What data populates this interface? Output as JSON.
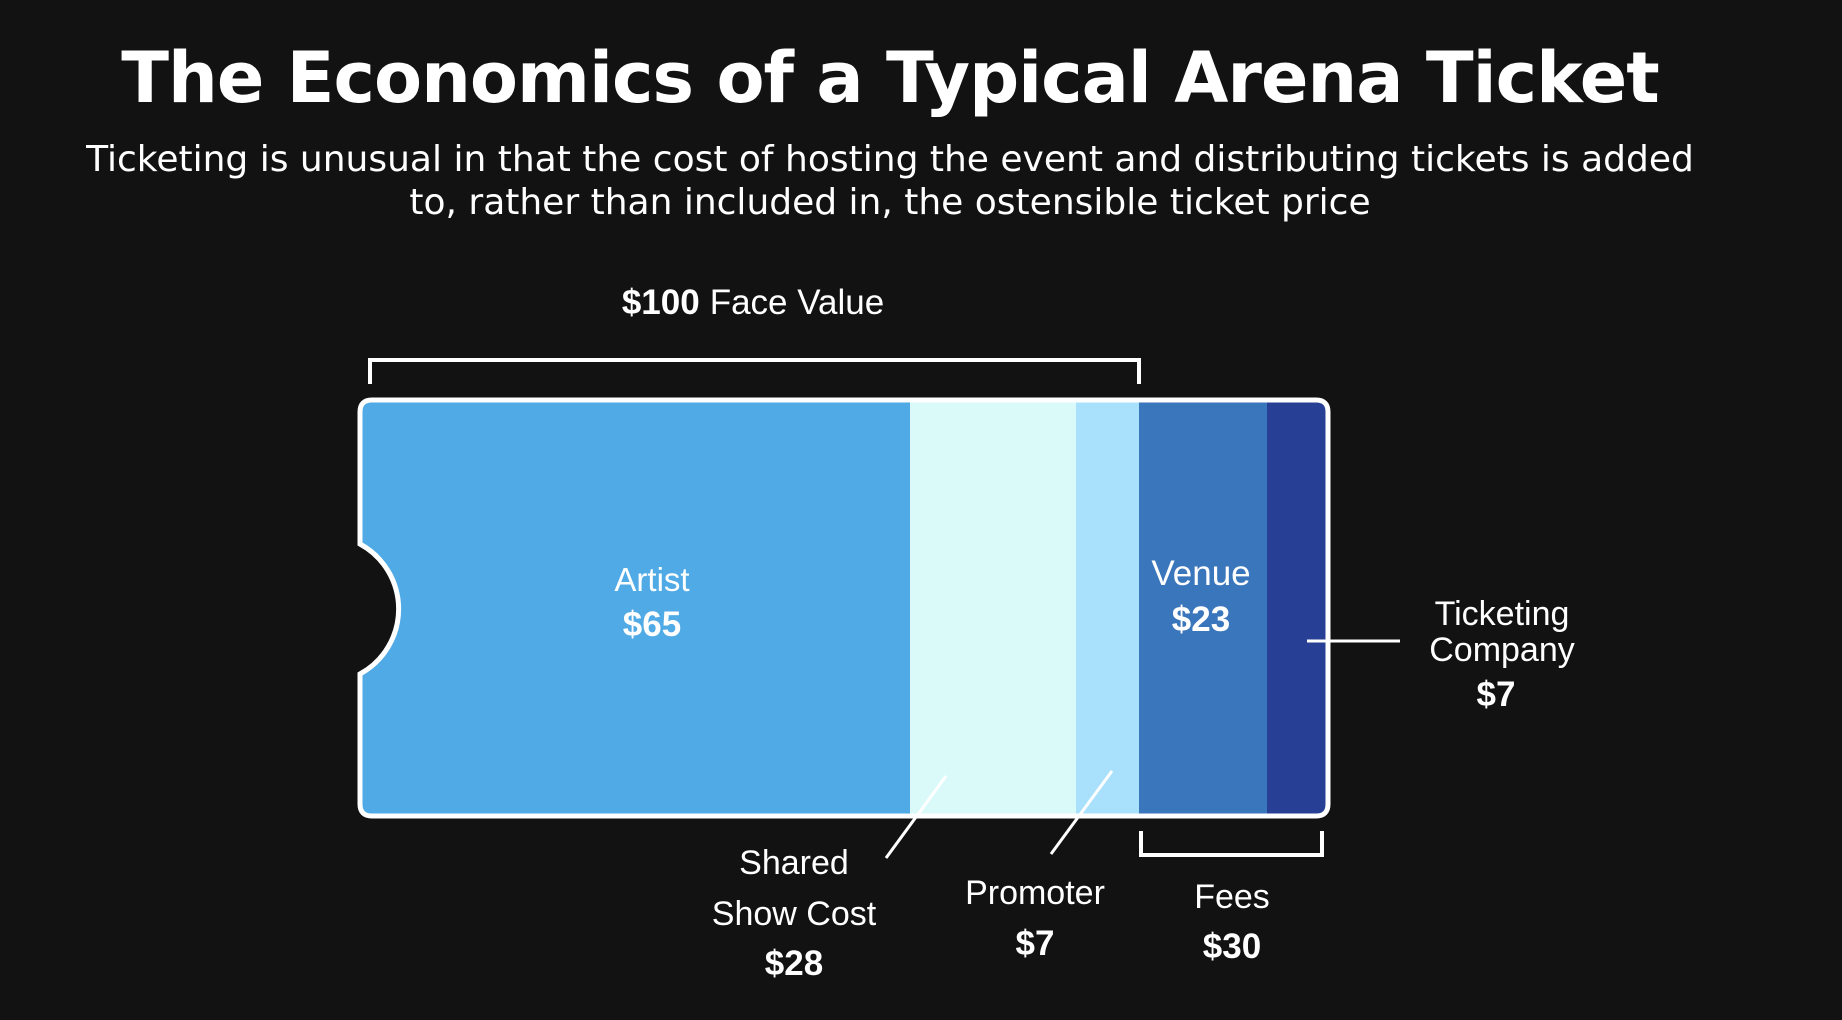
{
  "title": "The Economics of a Typical Arena Ticket",
  "subtitle": "Ticketing is unusual in that the cost of hosting the event and distributing tickets is added to, rather than included in, the ostensible ticket price",
  "face_value": {
    "amount": "$100",
    "label": "Face Value"
  },
  "segments": [
    {
      "name": "Artist",
      "amount": "$65",
      "color": "#4faae6"
    },
    {
      "name": "Shared Show Cost",
      "name_line1": "Shared",
      "name_line2": "Show Cost",
      "amount": "$28",
      "color": "#dafafa"
    },
    {
      "name": "Promoter",
      "amount": "$7",
      "color": "#a9e0fb"
    },
    {
      "name": "Venue",
      "amount": "$23",
      "color": "#3a76bb"
    },
    {
      "name": "Ticketing Company",
      "name_line1": "Ticketing",
      "name_line2": "Company",
      "amount": "$7",
      "color": "#283f96"
    }
  ],
  "fees": {
    "label": "Fees",
    "amount": "$30"
  },
  "colors": {
    "background": "#121212",
    "outline": "#ffffff",
    "text": "#ffffff"
  }
}
